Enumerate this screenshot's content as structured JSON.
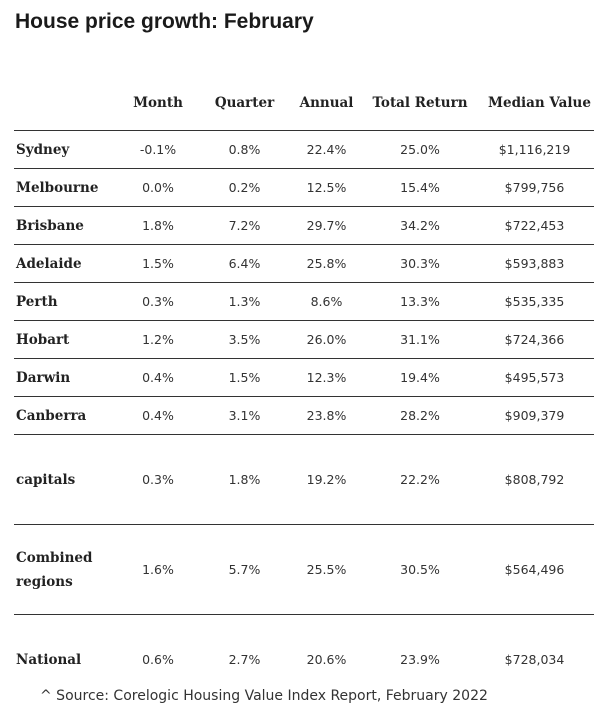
{
  "title": "House price growth: February",
  "source": "^ Source: Corelogic Housing Value Index Report, February 2022",
  "chart_data": {
    "type": "table",
    "title": "House price growth: February",
    "columns": [
      "",
      "Month",
      "Quarter",
      "Annual",
      "Total Return",
      "Median Value"
    ],
    "rows": [
      {
        "name": "Sydney",
        "month": "-0.1%",
        "quarter": "0.8%",
        "annual": "22.4%",
        "total_return": "25.0%",
        "median_value": "$1,116,219"
      },
      {
        "name": "Melbourne",
        "month": "0.0%",
        "quarter": "0.2%",
        "annual": "12.5%",
        "total_return": "15.4%",
        "median_value": "$799,756"
      },
      {
        "name": "Brisbane",
        "month": "1.8%",
        "quarter": "7.2%",
        "annual": "29.7%",
        "total_return": "34.2%",
        "median_value": "$722,453"
      },
      {
        "name": "Adelaide",
        "month": "1.5%",
        "quarter": "6.4%",
        "annual": "25.8%",
        "total_return": "30.3%",
        "median_value": "$593,883"
      },
      {
        "name": "Perth",
        "month": "0.3%",
        "quarter": "1.3%",
        "annual": "8.6%",
        "total_return": "13.3%",
        "median_value": "$535,335"
      },
      {
        "name": "Hobart",
        "month": "1.2%",
        "quarter": "3.5%",
        "annual": "26.0%",
        "total_return": "31.1%",
        "median_value": "$724,366"
      },
      {
        "name": "Darwin",
        "month": "0.4%",
        "quarter": "1.5%",
        "annual": "12.3%",
        "total_return": "19.4%",
        "median_value": "$495,573"
      },
      {
        "name": "Canberra",
        "month": "0.4%",
        "quarter": "3.1%",
        "annual": "23.8%",
        "total_return": "28.2%",
        "median_value": "$909,379"
      },
      {
        "name": "capitals",
        "month": "0.3%",
        "quarter": "1.8%",
        "annual": "19.2%",
        "total_return": "22.2%",
        "median_value": "$808,792"
      },
      {
        "name": "Combined regions",
        "month": "1.6%",
        "quarter": "5.7%",
        "annual": "25.5%",
        "total_return": "30.5%",
        "median_value": "$564,496"
      },
      {
        "name": "National",
        "month": "0.6%",
        "quarter": "2.7%",
        "annual": "20.6%",
        "total_return": "23.9%",
        "median_value": "$728,034"
      }
    ]
  }
}
